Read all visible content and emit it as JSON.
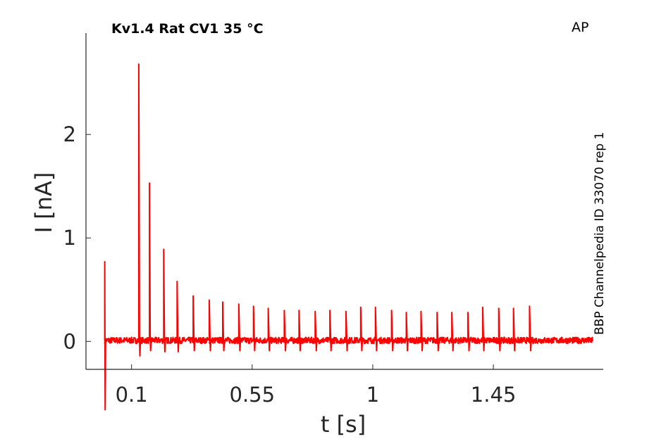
{
  "chart_data": {
    "type": "line",
    "title": "Kv1.4  Rat  CV1  35 °C",
    "protocol_label": "AP",
    "side_label": "BBP Channelpedia ID 33070 rep 1",
    "xlabel": "t [s]",
    "ylabel": "I [nA]",
    "xlim": [
      -0.07,
      1.86
    ],
    "ylim": [
      -0.27,
      2.98
    ],
    "xticks": [
      0.1,
      0.55,
      1,
      1.45
    ],
    "xtick_labels": [
      "0.1",
      "0.55",
      "1",
      "1.45"
    ],
    "yticks": [
      0,
      1,
      2
    ],
    "ytick_labels": [
      "0",
      "1",
      "2"
    ],
    "grid": false,
    "series": [
      {
        "color": "#ff0000",
        "stimulus_onset": {
          "x": 0.0,
          "peak": 0.77,
          "trough": -0.66
        },
        "spikes": [
          {
            "x": 0.127,
            "peak": 2.68,
            "trough": -0.14
          },
          {
            "x": 0.167,
            "peak": 1.53,
            "trough": -0.09
          },
          {
            "x": 0.22,
            "peak": 0.89,
            "trough": -0.1
          },
          {
            "x": 0.27,
            "peak": 0.58,
            "trough": -0.1
          },
          {
            "x": 0.33,
            "peak": 0.44,
            "trough": -0.09
          },
          {
            "x": 0.39,
            "peak": 0.4,
            "trough": -0.09
          },
          {
            "x": 0.44,
            "peak": 0.38,
            "trough": -0.09
          },
          {
            "x": 0.5,
            "peak": 0.36,
            "trough": -0.09
          },
          {
            "x": 0.555,
            "peak": 0.34,
            "trough": -0.09
          },
          {
            "x": 0.61,
            "peak": 0.32,
            "trough": -0.09
          },
          {
            "x": 0.67,
            "peak": 0.3,
            "trough": -0.09
          },
          {
            "x": 0.725,
            "peak": 0.3,
            "trough": -0.09
          },
          {
            "x": 0.785,
            "peak": 0.29,
            "trough": -0.09
          },
          {
            "x": 0.84,
            "peak": 0.3,
            "trough": -0.09
          },
          {
            "x": 0.9,
            "peak": 0.29,
            "trough": -0.09
          },
          {
            "x": 0.955,
            "peak": 0.33,
            "trough": -0.09
          },
          {
            "x": 1.01,
            "peak": 0.33,
            "trough": -0.09
          },
          {
            "x": 1.07,
            "peak": 0.3,
            "trough": -0.09
          },
          {
            "x": 1.125,
            "peak": 0.28,
            "trough": -0.09
          },
          {
            "x": 1.18,
            "peak": 0.29,
            "trough": -0.09
          },
          {
            "x": 1.24,
            "peak": 0.28,
            "trough": -0.09
          },
          {
            "x": 1.295,
            "peak": 0.28,
            "trough": -0.09
          },
          {
            "x": 1.355,
            "peak": 0.28,
            "trough": -0.09
          },
          {
            "x": 1.41,
            "peak": 0.33,
            "trough": -0.09
          },
          {
            "x": 1.47,
            "peak": 0.32,
            "trough": -0.09
          },
          {
            "x": 1.525,
            "peak": 0.32,
            "trough": -0.09
          },
          {
            "x": 1.585,
            "peak": 0.34,
            "trough": -0.09
          }
        ],
        "baseline": 0.01,
        "noise_amplitude": 0.03,
        "trace_start": 0.0,
        "trace_end": 1.82
      }
    ]
  }
}
